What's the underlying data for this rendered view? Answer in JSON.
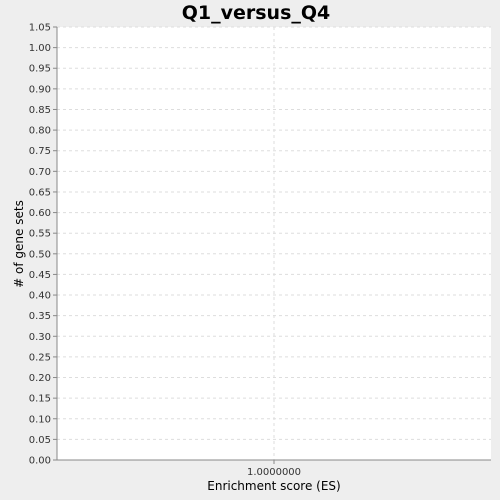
{
  "chart_data": {
    "type": "bar",
    "title": "Q1_versus_Q4",
    "xlabel": "Enrichment score (ES)",
    "ylabel": "# of gene sets",
    "categories": [
      "1.0000000"
    ],
    "values": [
      0
    ],
    "ylim": [
      0,
      1.05
    ],
    "yticks": [
      0.0,
      0.05,
      0.1,
      0.15,
      0.2,
      0.25,
      0.3,
      0.35,
      0.4,
      0.45,
      0.5,
      0.55,
      0.6,
      0.65,
      0.7,
      0.75,
      0.8,
      0.85,
      0.9,
      0.95,
      1.0,
      1.05
    ],
    "ytick_labels": [
      "0.00",
      "0.05",
      "0.10",
      "0.15",
      "0.20",
      "0.25",
      "0.30",
      "0.35",
      "0.40",
      "0.45",
      "0.50",
      "0.55",
      "0.60",
      "0.65",
      "0.70",
      "0.75",
      "0.80",
      "0.85",
      "0.90",
      "0.95",
      "1.00",
      "1.05"
    ],
    "grid": true,
    "colors": {
      "background": "#eeeeee",
      "plot_background": "#ffffff",
      "grid": "#dddddd",
      "axis": "#888888"
    }
  }
}
